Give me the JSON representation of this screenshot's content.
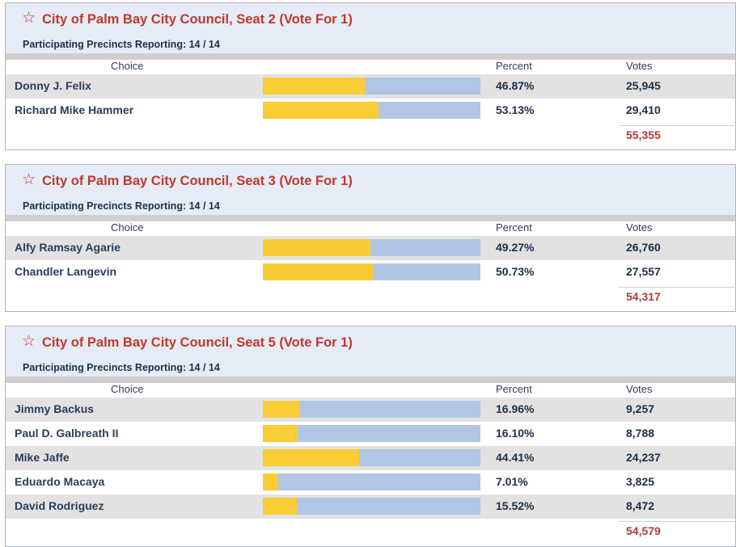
{
  "races": [
    {
      "title": "City of Palm Bay City Council, Seat 2 (Vote For 1)",
      "precincts": "Participating Precincts Reporting: 14 / 14",
      "headers": {
        "choice": "Choice",
        "percent": "Percent",
        "votes": "Votes"
      },
      "candidates": [
        {
          "name": "Donny J. Felix",
          "percent": "46.87%",
          "share": 0.4687,
          "votes": "25,945"
        },
        {
          "name": "Richard Mike Hammer",
          "percent": "53.13%",
          "share": 0.5313,
          "votes": "29,410"
        }
      ],
      "total": "55,355"
    },
    {
      "title": "City of Palm Bay City Council, Seat 3 (Vote For 1)",
      "precincts": "Participating Precincts Reporting: 14 / 14",
      "headers": {
        "choice": "Choice",
        "percent": "Percent",
        "votes": "Votes"
      },
      "candidates": [
        {
          "name": "Alfy Ramsay Agarie",
          "percent": "49.27%",
          "share": 0.4927,
          "votes": "26,760"
        },
        {
          "name": "Chandler Langevin",
          "percent": "50.73%",
          "share": 0.5073,
          "votes": "27,557"
        }
      ],
      "total": "54,317"
    },
    {
      "title": "City of Palm Bay City Council, Seat 5 (Vote For 1)",
      "precincts": "Participating Precincts Reporting: 14 / 14",
      "headers": {
        "choice": "Choice",
        "percent": "Percent",
        "votes": "Votes"
      },
      "candidates": [
        {
          "name": "Jimmy Backus",
          "percent": "16.96%",
          "share": 0.1696,
          "votes": "9,257"
        },
        {
          "name": "Paul D. Galbreath II",
          "percent": "16.10%",
          "share": 0.161,
          "votes": "8,788"
        },
        {
          "name": "Mike Jaffe",
          "percent": "44.41%",
          "share": 0.4441,
          "votes": "24,237"
        },
        {
          "name": "Eduardo Macaya",
          "percent": "7.01%",
          "share": 0.0701,
          "votes": "3,825"
        },
        {
          "name": "David Rodriguez",
          "percent": "15.52%",
          "share": 0.1552,
          "votes": "8,472"
        }
      ],
      "total": "54,579"
    }
  ],
  "icons": {
    "favorite": "star-outline-icon"
  },
  "colors": {
    "title": "#c0392b",
    "bar_fill": "#f8cd35",
    "bar_track": "#b0c6e4",
    "total": "#b03a3a"
  }
}
